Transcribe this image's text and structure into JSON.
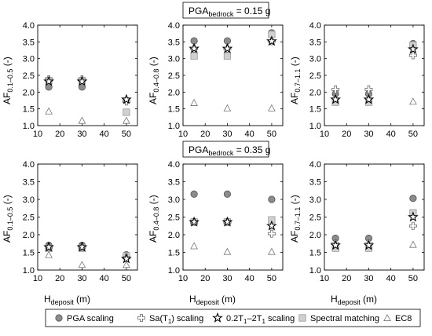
{
  "markers": {
    "pga": {
      "shape": "circle",
      "fill": "#8c8c8c",
      "stroke": "#555555"
    },
    "sa": {
      "shape": "plus",
      "fill": "#ffffff",
      "stroke": "#666666"
    },
    "band": {
      "shape": "star",
      "fill": "#ffffff",
      "stroke": "#000000"
    },
    "spectral": {
      "shape": "square",
      "fill": "#d0d0d0",
      "stroke": "#9a9a9a"
    },
    "ec8": {
      "shape": "triangle",
      "fill": "#ffffff",
      "stroke": "#777777"
    }
  },
  "legend": {
    "pga": "PGA scaling",
    "sa_pre": "Sa(T",
    "sa_sub": "1",
    "sa_post": ") scaling",
    "band_a": "0.2T",
    "band_a_sub": "1",
    "band_mid": "–2T",
    "band_b_sub": "1",
    "band_post": " scaling",
    "spectral": "Spectral matching",
    "ec8": "EC8"
  },
  "row_titles": [
    {
      "main": "PGA",
      "sub": "bedrock",
      "rest": " = 0.15 g"
    },
    {
      "main": "PGA",
      "sub": "bedrock",
      "rest": " = 0.35 g"
    }
  ],
  "x_axis": {
    "main": "H",
    "sub": "deposit",
    "rest": " (m)"
  },
  "y_labels": [
    {
      "main": "AF",
      "sub": "0.1–0.5",
      "rest": " (-)"
    },
    {
      "main": "AF",
      "sub": "0.4–0.8",
      "rest": " (-)"
    },
    {
      "main": "AF",
      "sub": "0.7–1.1",
      "rest": " (-)"
    }
  ],
  "chart_data": [
    {
      "type": "scatter",
      "panel": "top-left",
      "x_values": [
        15,
        30,
        50
      ],
      "xlim": [
        10,
        55
      ],
      "ylim": [
        1.0,
        4.0
      ],
      "xticks": [
        "10",
        "20",
        "30",
        "40",
        "50"
      ],
      "yticks": [
        "1.0",
        "1.5",
        "2.0",
        "2.5",
        "3.0",
        "3.5",
        "4.0"
      ],
      "series": [
        {
          "key": "pga",
          "values": [
            2.15,
            2.15,
            1.75
          ]
        },
        {
          "key": "sa",
          "values": [
            2.38,
            2.38,
            1.72
          ]
        },
        {
          "key": "band",
          "values": [
            2.32,
            2.32,
            1.78
          ]
        },
        {
          "key": "spectral",
          "values": [
            2.34,
            2.34,
            1.4
          ]
        },
        {
          "key": "ec8",
          "values": [
            1.43,
            1.15,
            1.15
          ]
        }
      ]
    },
    {
      "type": "scatter",
      "panel": "top-middle",
      "x_values": [
        15,
        30,
        50
      ],
      "xlim": [
        10,
        55
      ],
      "ylim": [
        1.0,
        4.0
      ],
      "xticks": [
        "10",
        "20",
        "30",
        "40",
        "50"
      ],
      "yticks": [
        "1.0",
        "1.5",
        "2.0",
        "2.5",
        "3.0",
        "3.5",
        "4.0"
      ],
      "series": [
        {
          "key": "pga",
          "values": [
            3.53,
            3.53,
            3.77
          ]
        },
        {
          "key": "sa",
          "values": [
            3.3,
            3.3,
            3.52
          ]
        },
        {
          "key": "band",
          "values": [
            3.3,
            3.3,
            3.52
          ]
        },
        {
          "key": "spectral",
          "values": [
            3.08,
            3.08,
            3.72
          ]
        },
        {
          "key": "ec8",
          "values": [
            1.68,
            1.52,
            1.52
          ]
        }
      ]
    },
    {
      "type": "scatter",
      "panel": "top-right",
      "x_values": [
        15,
        30,
        50
      ],
      "xlim": [
        10,
        55
      ],
      "ylim": [
        1.0,
        4.0
      ],
      "xticks": [
        "10",
        "20",
        "30",
        "40",
        "50"
      ],
      "yticks": [
        "1.0",
        "1.5",
        "2.0",
        "2.5",
        "3.0",
        "3.5",
        "4.0"
      ],
      "series": [
        {
          "key": "pga",
          "values": [
            1.95,
            1.95,
            3.45
          ]
        },
        {
          "key": "sa",
          "values": [
            2.08,
            2.08,
            3.1
          ]
        },
        {
          "key": "band",
          "values": [
            1.78,
            1.78,
            3.28
          ]
        },
        {
          "key": "spectral",
          "values": [
            1.7,
            1.7,
            3.4
          ]
        },
        {
          "key": "ec8",
          "values": [
            1.72,
            1.72,
            1.72
          ]
        }
      ]
    },
    {
      "type": "scatter",
      "panel": "bottom-left",
      "x_values": [
        15,
        30,
        50
      ],
      "xlim": [
        10,
        55
      ],
      "ylim": [
        1.0,
        4.0
      ],
      "xticks": [
        "10",
        "20",
        "30",
        "40",
        "50"
      ],
      "yticks": [
        "1.0",
        "1.5",
        "2.0",
        "2.5",
        "3.0",
        "3.5",
        "4.0"
      ],
      "series": [
        {
          "key": "pga",
          "values": [
            1.7,
            1.7,
            1.43
          ]
        },
        {
          "key": "sa",
          "values": [
            1.65,
            1.65,
            1.35
          ]
        },
        {
          "key": "band",
          "values": [
            1.65,
            1.65,
            1.32
          ]
        },
        {
          "key": "spectral",
          "values": [
            1.62,
            1.62,
            1.4
          ]
        },
        {
          "key": "ec8",
          "values": [
            1.43,
            1.15,
            1.15
          ]
        }
      ]
    },
    {
      "type": "scatter",
      "panel": "bottom-middle",
      "x_values": [
        15,
        30,
        50
      ],
      "xlim": [
        10,
        55
      ],
      "ylim": [
        1.0,
        4.0
      ],
      "xticks": [
        "10",
        "20",
        "30",
        "40",
        "50"
      ],
      "yticks": [
        "1.0",
        "1.5",
        "2.0",
        "2.5",
        "3.0",
        "3.5",
        "4.0"
      ],
      "series": [
        {
          "key": "pga",
          "values": [
            3.15,
            3.15,
            3.0
          ]
        },
        {
          "key": "sa",
          "values": [
            2.36,
            2.36,
            2.03
          ]
        },
        {
          "key": "band",
          "values": [
            2.36,
            2.36,
            2.25
          ]
        },
        {
          "key": "spectral",
          "values": [
            2.36,
            2.36,
            2.42
          ]
        },
        {
          "key": "ec8",
          "values": [
            1.68,
            1.52,
            1.52
          ]
        }
      ]
    },
    {
      "type": "scatter",
      "panel": "bottom-right",
      "x_values": [
        15,
        30,
        50
      ],
      "xlim": [
        10,
        55
      ],
      "ylim": [
        1.0,
        4.0
      ],
      "xticks": [
        "10",
        "20",
        "30",
        "40",
        "50"
      ],
      "yticks": [
        "1.0",
        "1.5",
        "2.0",
        "2.5",
        "3.0",
        "3.5",
        "4.0"
      ],
      "series": [
        {
          "key": "pga",
          "values": [
            1.9,
            1.9,
            3.03
          ]
        },
        {
          "key": "sa",
          "values": [
            1.75,
            1.75,
            2.25
          ]
        },
        {
          "key": "band",
          "values": [
            1.7,
            1.7,
            2.5
          ]
        },
        {
          "key": "spectral",
          "values": [
            1.62,
            1.62,
            2.62
          ]
        },
        {
          "key": "ec8",
          "values": [
            1.72,
            1.72,
            1.72
          ]
        }
      ]
    }
  ]
}
